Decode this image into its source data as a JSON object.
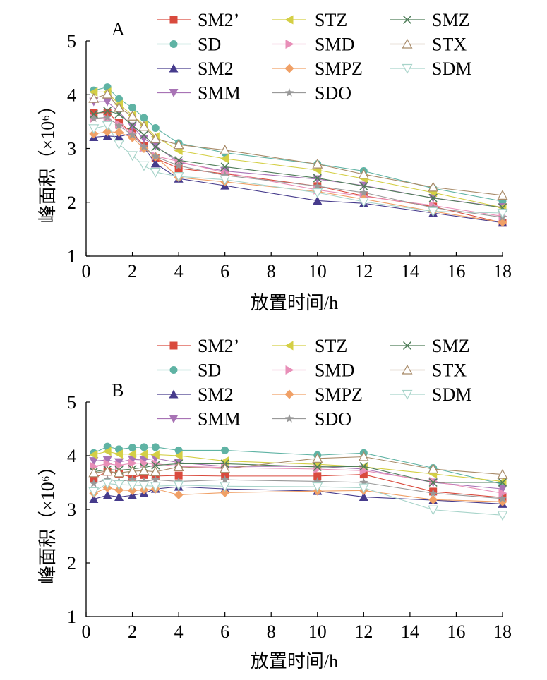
{
  "chart_data": [
    {
      "type": "line",
      "panel_label": "A",
      "xlabel": "放置时间/h",
      "ylabel": "峰面积（×10⁶）",
      "xlim": [
        0,
        18
      ],
      "ylim": [
        1,
        5
      ],
      "xticks": [
        0,
        2,
        4,
        6,
        8,
        10,
        12,
        14,
        16,
        18
      ],
      "yticks": [
        1,
        2,
        3,
        4,
        5
      ],
      "grid": false,
      "legend_position": "top",
      "x": [
        0.33,
        0.92,
        1.42,
        2,
        2.5,
        3,
        4,
        6,
        10,
        12,
        15,
        18
      ],
      "series": [
        {
          "name": "SM2’",
          "color": "#d94a3d",
          "marker": "square",
          "values": [
            3.66,
            3.67,
            3.48,
            3.3,
            3.05,
            2.82,
            2.63,
            2.53,
            2.3,
            2.12,
            1.92,
            1.62
          ]
        },
        {
          "name": "SD",
          "color": "#5fb3a4",
          "marker": "circle",
          "values": [
            4.08,
            4.14,
            3.92,
            3.76,
            3.57,
            3.38,
            3.1,
            2.92,
            2.71,
            2.58,
            2.26,
            2.02
          ]
        },
        {
          "name": "SM2",
          "color": "#463b8c",
          "marker": "triangle-up",
          "values": [
            3.21,
            3.23,
            3.22,
            3.28,
            3.02,
            2.72,
            2.44,
            2.31,
            2.03,
            1.98,
            1.8,
            1.62
          ]
        },
        {
          "name": "SMM",
          "color": "#a873b5",
          "marker": "triangle-down",
          "values": [
            3.87,
            3.87,
            3.68,
            3.41,
            3.18,
            3.05,
            2.74,
            2.58,
            2.43,
            2.31,
            2.08,
            1.91
          ]
        },
        {
          "name": "STZ",
          "color": "#d4cf45",
          "marker": "triangle-left",
          "values": [
            4.05,
            4.05,
            3.82,
            3.62,
            3.44,
            3.22,
            2.96,
            2.81,
            2.6,
            2.44,
            2.18,
            1.9
          ]
        },
        {
          "name": "SMD",
          "color": "#e88fb8",
          "marker": "triangle-right",
          "values": [
            3.56,
            3.55,
            3.45,
            3.28,
            3.02,
            2.86,
            2.76,
            2.55,
            2.23,
            2.11,
            1.94,
            1.74
          ]
        },
        {
          "name": "SMPZ",
          "color": "#f0a066",
          "marker": "diamond",
          "values": [
            3.27,
            3.31,
            3.3,
            3.2,
            3.0,
            2.85,
            2.46,
            2.38,
            2.2,
            2.06,
            1.83,
            1.63
          ]
        },
        {
          "name": "SDO",
          "color": "#999999",
          "marker": "star",
          "values": [
            3.56,
            3.58,
            3.42,
            3.25,
            3.03,
            2.85,
            2.68,
            2.5,
            2.3,
            2.18,
            1.9,
            1.72
          ]
        },
        {
          "name": "SMZ",
          "color": "#4e7d58",
          "marker": "x",
          "values": [
            3.64,
            3.7,
            3.64,
            3.43,
            3.25,
            3.03,
            2.78,
            2.66,
            2.45,
            2.3,
            2.08,
            1.9
          ]
        },
        {
          "name": "STX",
          "color": "#a88a68",
          "marker": "open-triangle-up",
          "values": [
            3.93,
            4.01,
            3.76,
            3.6,
            3.41,
            3.18,
            3.07,
            2.97,
            2.71,
            2.52,
            2.28,
            2.13
          ]
        },
        {
          "name": "SDM",
          "color": "#a8d4ca",
          "marker": "open-triangle-down",
          "values": [
            3.37,
            3.43,
            3.08,
            2.87,
            2.68,
            2.56,
            2.48,
            2.42,
            2.18,
            2.01,
            1.83,
            1.8
          ]
        }
      ]
    },
    {
      "type": "line",
      "panel_label": "B",
      "xlabel": "放置时间/h",
      "ylabel": "峰面积（×10⁶）",
      "xlim": [
        0,
        18
      ],
      "ylim": [
        1,
        5
      ],
      "xticks": [
        0,
        2,
        4,
        6,
        8,
        10,
        12,
        14,
        16,
        18
      ],
      "yticks": [
        1,
        2,
        3,
        4,
        5
      ],
      "grid": false,
      "legend_position": "top",
      "x": [
        0.33,
        0.92,
        1.42,
        2,
        2.5,
        3,
        4,
        6,
        10,
        12,
        15,
        18
      ],
      "series": [
        {
          "name": "SM2’",
          "color": "#d94a3d",
          "marker": "square",
          "values": [
            3.58,
            3.7,
            3.66,
            3.6,
            3.64,
            3.62,
            3.63,
            3.62,
            3.62,
            3.65,
            3.33,
            3.22
          ]
        },
        {
          "name": "SD",
          "color": "#5fb3a4",
          "marker": "circle",
          "values": [
            4.05,
            4.17,
            4.12,
            4.15,
            4.16,
            4.16,
            4.1,
            4.1,
            4.01,
            4.05,
            3.77,
            3.47
          ]
        },
        {
          "name": "SM2",
          "color": "#463b8c",
          "marker": "triangle-up",
          "values": [
            3.19,
            3.26,
            3.23,
            3.26,
            3.3,
            3.38,
            3.42,
            3.38,
            3.34,
            3.23,
            3.17,
            3.1
          ]
        },
        {
          "name": "SMM",
          "color": "#a873b5",
          "marker": "triangle-down",
          "values": [
            3.9,
            3.92,
            3.88,
            3.93,
            3.92,
            3.95,
            3.87,
            3.8,
            3.8,
            3.75,
            3.5,
            3.38
          ]
        },
        {
          "name": "STZ",
          "color": "#d4cf45",
          "marker": "triangle-left",
          "values": [
            4.02,
            4.08,
            4.03,
            4.03,
            4.03,
            4.02,
            4.0,
            3.9,
            3.84,
            3.79,
            3.66,
            3.52
          ]
        },
        {
          "name": "SMD",
          "color": "#e88fb8",
          "marker": "triangle-right",
          "values": [
            3.8,
            3.85,
            3.82,
            3.86,
            3.86,
            3.85,
            3.8,
            3.78,
            3.75,
            3.72,
            3.52,
            3.3
          ]
        },
        {
          "name": "SMPZ",
          "color": "#f0a066",
          "marker": "diamond",
          "values": [
            3.3,
            3.4,
            3.36,
            3.35,
            3.36,
            3.38,
            3.27,
            3.31,
            3.34,
            3.35,
            3.18,
            3.14
          ]
        },
        {
          "name": "SDO",
          "color": "#999999",
          "marker": "star",
          "values": [
            3.48,
            3.56,
            3.52,
            3.55,
            3.52,
            3.55,
            3.52,
            3.55,
            3.52,
            3.5,
            3.3,
            3.2
          ]
        },
        {
          "name": "SMZ",
          "color": "#4e7d58",
          "marker": "x",
          "values": [
            3.7,
            3.74,
            3.73,
            3.75,
            3.78,
            3.82,
            3.85,
            3.85,
            3.79,
            3.8,
            3.5,
            3.5
          ]
        },
        {
          "name": "STX",
          "color": "#a88a68",
          "marker": "open-triangle-up",
          "values": [
            3.68,
            3.71,
            3.68,
            3.71,
            3.72,
            3.7,
            3.79,
            3.76,
            3.95,
            3.98,
            3.75,
            3.65
          ]
        },
        {
          "name": "SDM",
          "color": "#a8d4ca",
          "marker": "open-triangle-down",
          "values": [
            3.33,
            3.48,
            3.46,
            3.45,
            3.44,
            3.43,
            3.45,
            3.43,
            3.42,
            3.4,
            2.99,
            2.89
          ]
        }
      ]
    }
  ]
}
